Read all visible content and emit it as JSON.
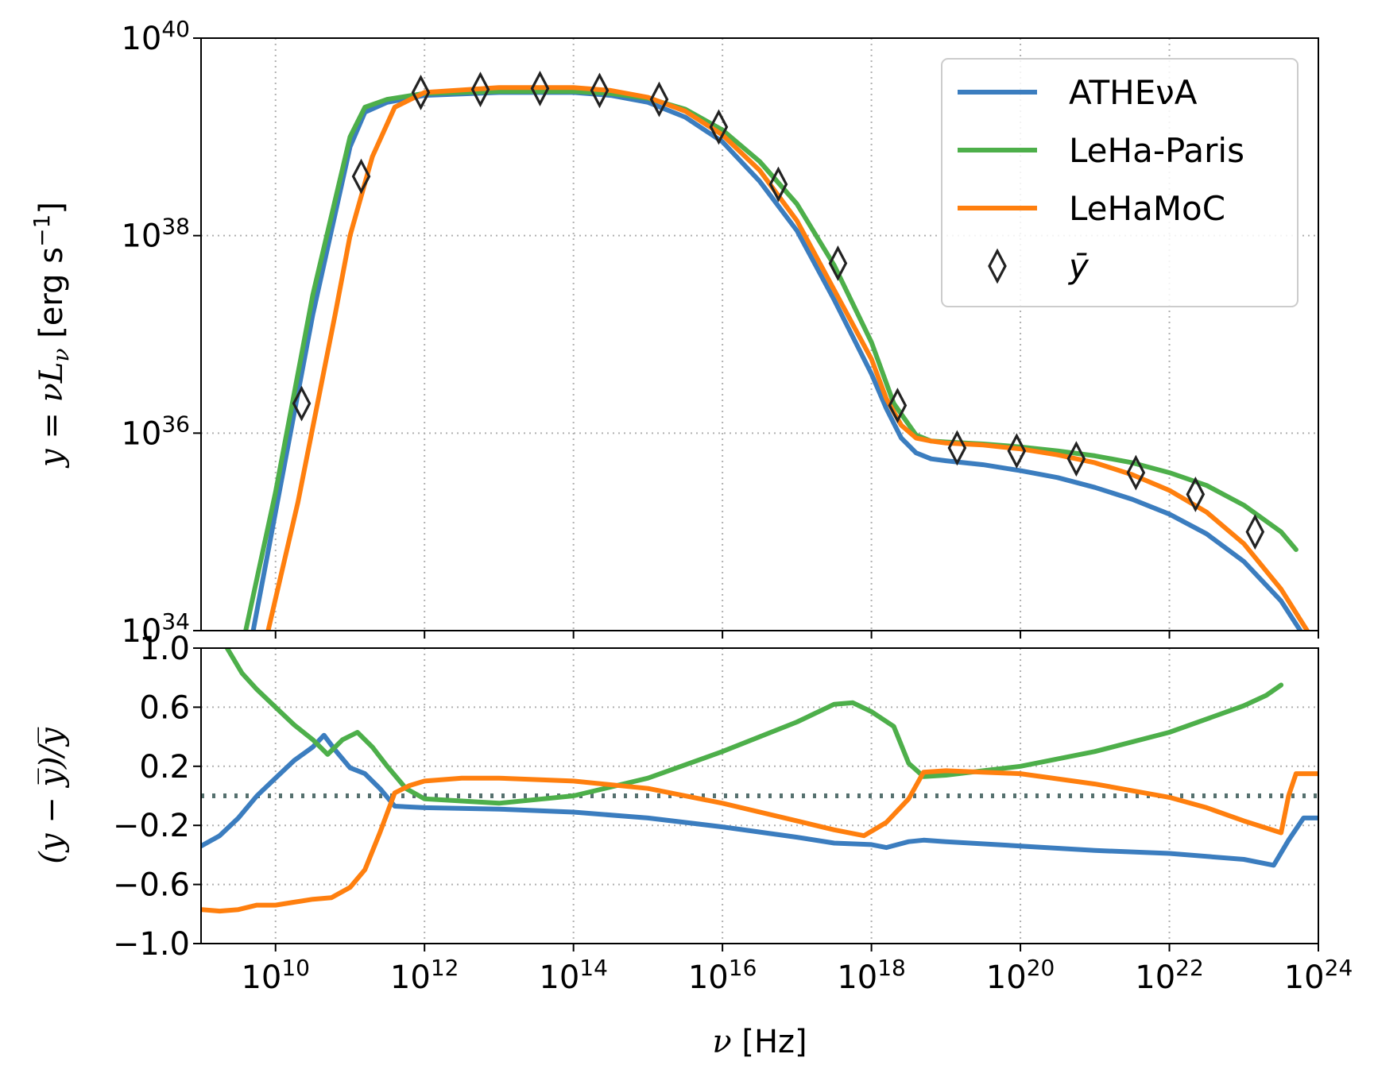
{
  "colors": {
    "athena": "#3b7dbf",
    "leha_paris": "#4daf4a",
    "lehamoc": "#ff7f0e",
    "ybar_marker": "#222222",
    "zero_line": "#55706e",
    "grid": "#b0b0b0"
  },
  "top_panel": {
    "ylabel": {
      "pre": "y = ",
      "nu": "ν",
      "L": "L",
      "nu_sub": "ν",
      "units": " [erg s",
      "exp": "−1",
      "close": "]"
    },
    "yticks": [
      {
        "base": "10",
        "exp": "34",
        "value": 34
      },
      {
        "base": "10",
        "exp": "36",
        "value": 36
      },
      {
        "base": "10",
        "exp": "38",
        "value": 38
      },
      {
        "base": "10",
        "exp": "40",
        "value": 40
      }
    ]
  },
  "bottom_panel": {
    "ylabel": "(y − y̅)/y̅",
    "yticks": [
      {
        "label": "−1.0",
        "value": -1.0
      },
      {
        "label": "−0.6",
        "value": -0.6
      },
      {
        "label": "−0.2",
        "value": -0.2
      },
      {
        "label": "0.2",
        "value": 0.2
      },
      {
        "label": "0.6",
        "value": 0.6
      },
      {
        "label": "1.0",
        "value": 1.0
      }
    ],
    "xticks": [
      {
        "base": "10",
        "exp": "10",
        "value": 10
      },
      {
        "base": "10",
        "exp": "12",
        "value": 12
      },
      {
        "base": "10",
        "exp": "14",
        "value": 14
      },
      {
        "base": "10",
        "exp": "16",
        "value": 16
      },
      {
        "base": "10",
        "exp": "18",
        "value": 18
      },
      {
        "base": "10",
        "exp": "20",
        "value": 20
      },
      {
        "base": "10",
        "exp": "22",
        "value": 22
      },
      {
        "base": "10",
        "exp": "24",
        "value": 24
      }
    ],
    "xlabel": {
      "nu": "ν",
      "units": " [Hz]"
    }
  },
  "legend": {
    "entries": [
      {
        "label": "ATHEνA",
        "key": "athena"
      },
      {
        "label": "LeHa-Paris",
        "key": "leha_paris"
      },
      {
        "label": "LeHaMoC",
        "key": "lehamoc"
      },
      {
        "label": "ȳ",
        "key": "ybar"
      }
    ]
  },
  "chart_data": [
    {
      "type": "line",
      "xlabel": "ν [Hz]",
      "ylabel": "y = νLν [erg s⁻¹]",
      "xscale": "log",
      "yscale": "log",
      "xlim_log10": [
        9.0,
        24.0
      ],
      "ylim_log10": [
        34.0,
        40.0
      ],
      "grid": true,
      "legend_position": "top-right",
      "series": [
        {
          "name": "ATHEνA",
          "color_key": "athena",
          "log10_x": [
            9.7,
            10.0,
            10.5,
            11.0,
            11.2,
            11.5,
            12.0,
            13.0,
            14.0,
            14.5,
            15.0,
            15.5,
            16.0,
            16.5,
            17.0,
            17.5,
            18.0,
            18.2,
            18.4,
            18.6,
            18.8,
            19.0,
            19.5,
            20.0,
            20.5,
            21.0,
            21.5,
            22.0,
            22.5,
            23.0,
            23.5,
            23.8
          ],
          "log10_y": [
            34.0,
            35.2,
            37.2,
            38.9,
            39.25,
            39.35,
            39.42,
            39.45,
            39.45,
            39.42,
            39.35,
            39.2,
            38.95,
            38.55,
            38.05,
            37.35,
            36.6,
            36.25,
            35.95,
            35.8,
            35.74,
            35.72,
            35.68,
            35.62,
            35.55,
            35.45,
            35.33,
            35.18,
            34.98,
            34.7,
            34.3,
            33.95
          ]
        },
        {
          "name": "LeHa-Paris",
          "color_key": "leha_paris",
          "log10_x": [
            9.6,
            10.0,
            10.5,
            11.0,
            11.2,
            11.5,
            12.0,
            13.0,
            14.0,
            14.5,
            15.0,
            15.5,
            16.0,
            16.5,
            17.0,
            17.5,
            18.0,
            18.3,
            18.6,
            18.8,
            19.0,
            19.5,
            20.0,
            20.5,
            21.0,
            21.5,
            22.0,
            22.5,
            23.0,
            23.5,
            23.7
          ],
          "log10_y": [
            34.0,
            35.4,
            37.4,
            39.0,
            39.3,
            39.38,
            39.44,
            39.46,
            39.46,
            39.44,
            39.39,
            39.28,
            39.07,
            38.75,
            38.32,
            37.7,
            36.92,
            36.3,
            35.98,
            35.92,
            35.91,
            35.89,
            35.86,
            35.82,
            35.77,
            35.7,
            35.6,
            35.47,
            35.27,
            35.0,
            34.82
          ]
        },
        {
          "name": "LeHaMoC",
          "color_key": "lehamoc",
          "log10_x": [
            9.9,
            10.3,
            10.8,
            11.0,
            11.3,
            11.6,
            12.0,
            13.0,
            14.0,
            14.5,
            15.0,
            15.5,
            16.0,
            16.5,
            17.0,
            17.5,
            18.0,
            18.2,
            18.4,
            18.6,
            18.8,
            19.0,
            19.5,
            20.0,
            20.5,
            21.0,
            21.5,
            22.0,
            22.5,
            23.0,
            23.5,
            23.85
          ],
          "log10_y": [
            34.0,
            35.3,
            37.2,
            38.0,
            38.8,
            39.3,
            39.45,
            39.5,
            39.5,
            39.47,
            39.4,
            39.26,
            39.02,
            38.66,
            38.15,
            37.45,
            36.75,
            36.35,
            36.08,
            35.95,
            35.92,
            35.9,
            35.88,
            35.84,
            35.78,
            35.7,
            35.58,
            35.42,
            35.2,
            34.88,
            34.42,
            34.0
          ]
        },
        {
          "name": "ȳ",
          "type": "scatter",
          "marker": "thin-diamond",
          "color_key": "ybar_marker",
          "log10_x": [
            10.35,
            11.15,
            11.95,
            12.75,
            13.55,
            14.35,
            15.15,
            15.95,
            16.75,
            17.55,
            18.35,
            19.15,
            19.95,
            20.75,
            21.55,
            22.35,
            23.15
          ],
          "log10_y": [
            36.3,
            38.6,
            39.45,
            39.48,
            39.49,
            39.47,
            39.38,
            39.1,
            38.52,
            37.72,
            36.28,
            35.85,
            35.82,
            35.74,
            35.6,
            35.38,
            35.0
          ]
        }
      ]
    },
    {
      "type": "line",
      "ylabel": "(y − y̅)/y̅",
      "xlabel": "ν [Hz]",
      "xscale": "log",
      "xlim_log10": [
        9.0,
        24.0
      ],
      "ylim": [
        -1.0,
        1.0
      ],
      "grid": true,
      "reference_line": {
        "y": 0.0,
        "style": "dotted"
      },
      "series": [
        {
          "name": "ATHEνA",
          "color_key": "athena",
          "log10_x": [
            9.0,
            9.25,
            9.5,
            9.75,
            10.0,
            10.25,
            10.5,
            10.65,
            10.8,
            11.0,
            11.2,
            11.4,
            11.6,
            12.0,
            13.0,
            14.0,
            15.0,
            16.0,
            17.0,
            17.5,
            18.0,
            18.2,
            18.5,
            18.7,
            19.0,
            20.0,
            21.0,
            22.0,
            23.0,
            23.4,
            23.6,
            23.8,
            24.0
          ],
          "values": [
            -0.34,
            -0.27,
            -0.15,
            0.0,
            0.12,
            0.24,
            0.33,
            0.41,
            0.31,
            0.19,
            0.15,
            0.05,
            -0.07,
            -0.08,
            -0.09,
            -0.11,
            -0.15,
            -0.21,
            -0.28,
            -0.32,
            -0.33,
            -0.35,
            -0.31,
            -0.3,
            -0.31,
            -0.34,
            -0.37,
            -0.39,
            -0.43,
            -0.47,
            -0.3,
            -0.15,
            -0.15
          ]
        },
        {
          "name": "LeHa-Paris",
          "color_key": "leha_paris",
          "log10_x": [
            9.35,
            9.55,
            9.75,
            10.0,
            10.25,
            10.5,
            10.7,
            10.9,
            11.1,
            11.3,
            11.5,
            11.75,
            12.0,
            13.0,
            14.0,
            15.0,
            16.0,
            17.0,
            17.5,
            17.75,
            18.0,
            18.3,
            18.5,
            18.7,
            19.0,
            20.0,
            21.0,
            22.0,
            23.0,
            23.3,
            23.5
          ],
          "values": [
            1.0,
            0.83,
            0.72,
            0.6,
            0.48,
            0.38,
            0.28,
            0.38,
            0.43,
            0.33,
            0.2,
            0.05,
            -0.02,
            -0.05,
            0.0,
            0.12,
            0.3,
            0.5,
            0.62,
            0.63,
            0.57,
            0.47,
            0.22,
            0.13,
            0.14,
            0.2,
            0.3,
            0.43,
            0.61,
            0.68,
            0.75
          ]
        },
        {
          "name": "LeHaMoC",
          "color_key": "lehamoc",
          "log10_x": [
            9.0,
            9.25,
            9.5,
            9.75,
            10.0,
            10.25,
            10.5,
            10.75,
            11.0,
            11.2,
            11.4,
            11.6,
            11.8,
            12.0,
            12.5,
            13.0,
            14.0,
            15.0,
            16.0,
            17.0,
            17.5,
            17.9,
            18.2,
            18.5,
            18.7,
            19.0,
            20.0,
            21.0,
            22.0,
            22.5,
            23.0,
            23.5,
            23.6,
            23.7,
            24.0
          ],
          "values": [
            -0.77,
            -0.78,
            -0.77,
            -0.74,
            -0.74,
            -0.72,
            -0.7,
            -0.69,
            -0.62,
            -0.5,
            -0.25,
            0.02,
            0.07,
            0.1,
            0.12,
            0.12,
            0.1,
            0.05,
            -0.05,
            -0.17,
            -0.23,
            -0.27,
            -0.18,
            -0.02,
            0.16,
            0.17,
            0.15,
            0.08,
            -0.01,
            -0.08,
            -0.17,
            -0.25,
            0.0,
            0.15,
            0.15
          ]
        }
      ]
    }
  ]
}
